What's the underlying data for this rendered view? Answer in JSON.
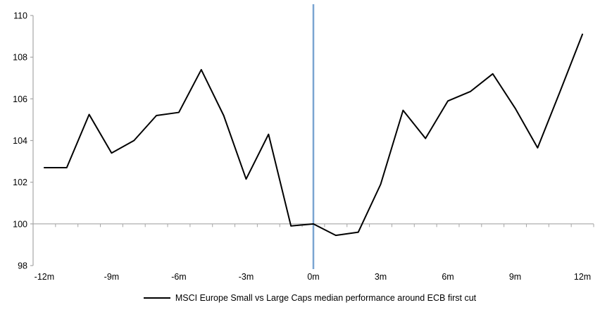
{
  "chart_data": {
    "type": "line",
    "title": "",
    "x": [
      "-12m",
      "-11m",
      "-10m",
      "-9m",
      "-8m",
      "-7m",
      "-6m",
      "-5m",
      "-4m",
      "-3m",
      "-2m",
      "-1m",
      "0m",
      "1m",
      "2m",
      "3m",
      "4m",
      "5m",
      "6m",
      "7m",
      "8m",
      "9m",
      "10m",
      "11m",
      "12m"
    ],
    "series": [
      {
        "name": "MSCI Europe Small vs Large Caps median performance around ECB first cut",
        "color": "#000000",
        "values": [
          102.7,
          102.7,
          105.25,
          103.4,
          104.0,
          105.2,
          105.35,
          107.4,
          105.2,
          102.15,
          104.3,
          99.9,
          100.0,
          99.45,
          99.6,
          101.9,
          105.45,
          104.1,
          105.9,
          106.35,
          107.2,
          105.55,
          103.65,
          106.35,
          109.1
        ]
      }
    ],
    "x_tick_every": 3,
    "y_ticks": [
      98,
      100,
      102,
      104,
      106,
      108,
      110
    ],
    "ylim": [
      98,
      110
    ],
    "axis_crosses_at": 100,
    "event_line": {
      "x": "0m",
      "color": "#7AA5D1"
    },
    "axis_color": "#A6A6A6",
    "text_color": "#000000",
    "grid": "off",
    "legend_position": "bottom"
  }
}
